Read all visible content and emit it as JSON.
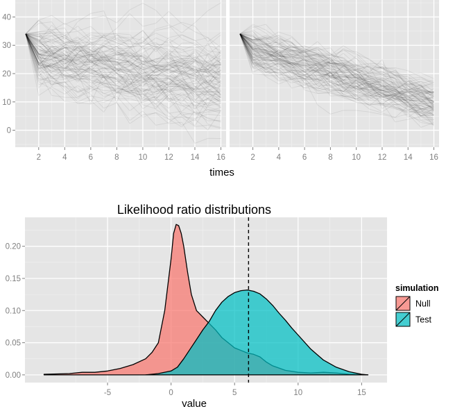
{
  "chart_data": [
    {
      "type": "line",
      "title": "",
      "facets": 2,
      "xlabel": "times",
      "ylabel": "",
      "xlim": [
        0.2,
        16.4
      ],
      "ylim": [
        -6,
        46
      ],
      "xticks": [
        2,
        4,
        6,
        8,
        10,
        12,
        14,
        16
      ],
      "yticks": [
        0,
        10,
        20,
        30,
        40
      ],
      "grid": true,
      "start_value": 34,
      "series_count": 100,
      "panels": [
        {
          "mean_start": 27,
          "mean_end": 17,
          "spread_start": 5,
          "spread_end": 8,
          "walk_sd": 4
        },
        {
          "mean_start": 29,
          "mean_end": 10,
          "spread_start": 3,
          "spread_end": 3.5,
          "walk_sd": 3
        }
      ]
    },
    {
      "type": "area",
      "title": "Likelihood ratio distributions",
      "xlabel": "value",
      "ylabel": "",
      "xlim": [
        -11.5,
        17
      ],
      "ylim": [
        -0.012,
        0.245
      ],
      "xticks": [
        -5,
        0,
        5,
        10,
        15
      ],
      "yticks": [
        0.0,
        0.05,
        0.1,
        0.15,
        0.2
      ],
      "yticklabels": [
        "0.00",
        "0.05",
        "0.10",
        "0.15",
        "0.20"
      ],
      "grid": true,
      "vline": 6.1,
      "legend": {
        "title": "simulation",
        "position": "right"
      },
      "series": [
        {
          "name": "Null",
          "color": "#F8766D",
          "x": [
            -10,
            -8,
            -7,
            -6,
            -5,
            -4,
            -3,
            -2,
            -1.5,
            -1,
            -0.5,
            0,
            0.2,
            0.4,
            0.6,
            0.8,
            1,
            1.3,
            1.6,
            2,
            2.5,
            3,
            3.5,
            4,
            4.5,
            5,
            5.5,
            6,
            6.5,
            7,
            7.5,
            8,
            9,
            10,
            11,
            12,
            13,
            14,
            15.5
          ],
          "y": [
            0.001,
            0.002,
            0.004,
            0.004,
            0.006,
            0.01,
            0.016,
            0.025,
            0.035,
            0.05,
            0.1,
            0.18,
            0.22,
            0.234,
            0.232,
            0.22,
            0.2,
            0.16,
            0.125,
            0.1,
            0.09,
            0.08,
            0.07,
            0.058,
            0.05,
            0.042,
            0.038,
            0.034,
            0.032,
            0.028,
            0.02,
            0.014,
            0.007,
            0.004,
            0.003,
            0.004,
            0.003,
            0.001,
            0.0
          ]
        },
        {
          "name": "Test",
          "color": "#00BFC4",
          "x": [
            -2,
            -1,
            0,
            0.5,
            1,
            1.5,
            2,
            2.5,
            3,
            3.5,
            4,
            4.5,
            5,
            5.5,
            6,
            6.5,
            7,
            7.5,
            8,
            8.5,
            9,
            9.5,
            10,
            11,
            12,
            13,
            14,
            15,
            15.5
          ],
          "y": [
            0.0,
            0.002,
            0.006,
            0.012,
            0.025,
            0.04,
            0.055,
            0.07,
            0.083,
            0.1,
            0.113,
            0.122,
            0.128,
            0.131,
            0.132,
            0.13,
            0.126,
            0.118,
            0.108,
            0.096,
            0.085,
            0.073,
            0.062,
            0.04,
            0.023,
            0.012,
            0.005,
            0.001,
            0.0
          ]
        }
      ]
    }
  ]
}
